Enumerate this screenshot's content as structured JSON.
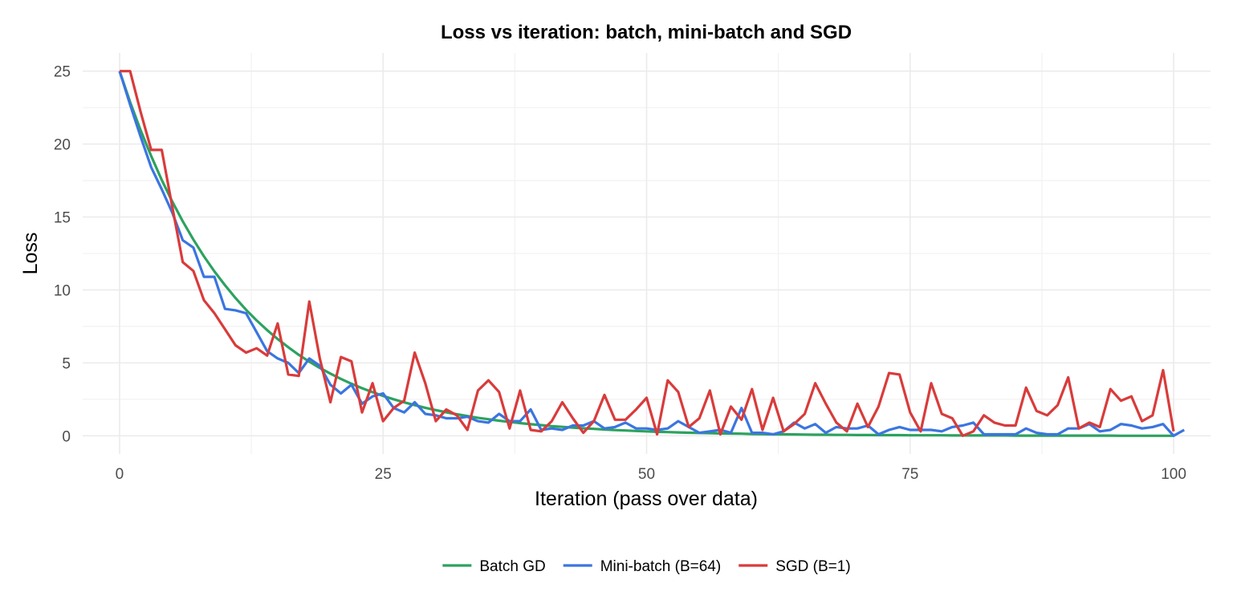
{
  "chart_data": {
    "type": "line",
    "title": "Loss vs iteration: batch, mini-batch and SGD",
    "xlabel": "Iteration (pass over data)",
    "ylabel": "Loss",
    "xlim": [
      -3.5,
      103.5
    ],
    "ylim": [
      -1.25,
      26.25
    ],
    "xticks": [
      0,
      25,
      50,
      75,
      100
    ],
    "yticks": [
      0,
      5,
      10,
      15,
      20,
      25
    ],
    "grid": true,
    "legend_position": "bottom",
    "series": [
      {
        "name": "Batch GD",
        "color": "#2ca25f",
        "y": [
          25,
          22.88,
          20.94,
          19.17,
          17.54,
          16.06,
          14.7,
          13.45,
          12.31,
          11.27,
          10.32,
          9.44,
          8.64,
          7.91,
          7.24,
          6.63,
          6.07,
          5.55,
          5.08,
          4.65,
          4.26,
          3.9,
          3.57,
          3.26,
          2.99,
          2.73,
          2.5,
          2.29,
          2.1,
          1.92,
          1.76,
          1.61,
          1.47,
          1.35,
          1.23,
          1.13,
          1.03,
          0.95,
          0.87,
          0.79,
          0.73,
          0.66,
          0.61,
          0.56,
          0.51,
          0.47,
          0.43,
          0.39,
          0.36,
          0.33,
          0.3,
          0.27,
          0.25,
          0.23,
          0.21,
          0.19,
          0.18,
          0.16,
          0.15,
          0.14,
          0.12,
          0.11,
          0.1,
          0.1,
          0.09,
          0.08,
          0.07,
          0.07,
          0.06,
          0.06,
          0.05,
          0.05,
          0.04,
          0.04,
          0.04,
          0.03,
          0.03,
          0.03,
          0.03,
          0.02,
          0.02,
          0.02,
          0.02,
          0.02,
          0.02,
          0.01,
          0.01,
          0.01,
          0.01,
          0.01,
          0.01,
          0.01,
          0.01,
          0.01,
          0.01,
          0,
          0,
          0,
          0,
          0,
          0
        ]
      },
      {
        "name": "Mini-batch (B=64)",
        "color": "#3b75e0",
        "y": [
          25,
          22.7,
          20.5,
          18.4,
          16.9,
          15.3,
          13.4,
          12.9,
          10.9,
          10.9,
          8.7,
          8.6,
          8.4,
          7.1,
          5.8,
          5.3,
          5.0,
          4.3,
          5.3,
          4.8,
          3.5,
          2.9,
          3.5,
          2.2,
          2.7,
          2.9,
          1.9,
          1.6,
          2.3,
          1.5,
          1.4,
          1.2,
          1.2,
          1.3,
          1.0,
          0.9,
          1.5,
          1.0,
          1.0,
          1.8,
          0.4,
          0.5,
          0.4,
          0.7,
          0.7,
          1.0,
          0.5,
          0.6,
          0.9,
          0.5,
          0.5,
          0.4,
          0.5,
          1.0,
          0.6,
          0.2,
          0.3,
          0.4,
          0.2,
          1.9,
          0.2,
          0.2,
          0.1,
          0.3,
          0.9,
          0.5,
          0.8,
          0.2,
          0.6,
          0.5,
          0.5,
          0.7,
          0.1,
          0.4,
          0.6,
          0.4,
          0.4,
          0.4,
          0.3,
          0.6,
          0.7,
          0.9,
          0.1,
          0.1,
          0.1,
          0.1,
          0.5,
          0.2,
          0.1,
          0.1,
          0.5,
          0.5,
          0.8,
          0.3,
          0.4,
          0.8,
          0.7,
          0.5,
          0.6,
          0.8,
          0.0,
          0.4
        ]
      },
      {
        "name": "SGD (B=1)",
        "color": "#d93b3b",
        "y": [
          25,
          25,
          22.2,
          19.6,
          19.6,
          15.7,
          11.9,
          11.3,
          9.3,
          8.4,
          7.3,
          6.2,
          5.7,
          6.0,
          5.5,
          7.7,
          4.2,
          4.1,
          9.2,
          5.3,
          2.3,
          5.4,
          5.1,
          1.6,
          3.6,
          1.0,
          1.9,
          2.4,
          5.7,
          3.6,
          1.0,
          1.8,
          1.4,
          0.4,
          3.1,
          3.8,
          3.0,
          0.5,
          3.1,
          0.4,
          0.3,
          1.0,
          2.3,
          1.2,
          0.2,
          1.0,
          2.8,
          1.1,
          1.1,
          1.8,
          2.6,
          0.1,
          3.8,
          3.0,
          0.6,
          1.2,
          3.1,
          0.1,
          2.0,
          1.1,
          3.2,
          0.4,
          2.6,
          0.3,
          0.8,
          1.5,
          3.6,
          2.2,
          0.9,
          0.3,
          2.2,
          0.6,
          2.0,
          4.3,
          4.2,
          1.6,
          0.3,
          3.6,
          1.5,
          1.2,
          0.0,
          0.3,
          1.4,
          0.9,
          0.7,
          0.7,
          3.3,
          1.7,
          1.4,
          2.1,
          4.0,
          0.5,
          0.9,
          0.6,
          3.2,
          2.4,
          2.7,
          1.0,
          1.4,
          4.5,
          0.3
        ]
      }
    ]
  }
}
